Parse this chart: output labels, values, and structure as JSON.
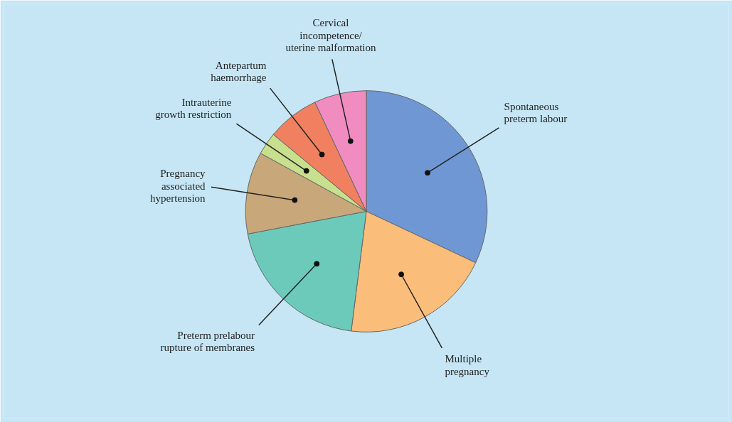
{
  "chart_data": {
    "type": "pie",
    "categories": [
      "Spontaneous\npreterm labour",
      "Multiple\npregnancy",
      "Preterm prelabour\nrupture of membranes",
      "Pregnancy\nassociated\nhypertension",
      "Intrauterine\ngrowth restriction",
      "Antepartum\nhaemorrhage",
      "Cervical\nincompetence/\nuterine malformation"
    ],
    "values": [
      32,
      20,
      20,
      11,
      3,
      7,
      7
    ],
    "colors": [
      "#6f97d3",
      "#fbbd7a",
      "#6ccabb",
      "#c8a87a",
      "#c8e08e",
      "#f08060",
      "#f08cc0"
    ]
  }
}
